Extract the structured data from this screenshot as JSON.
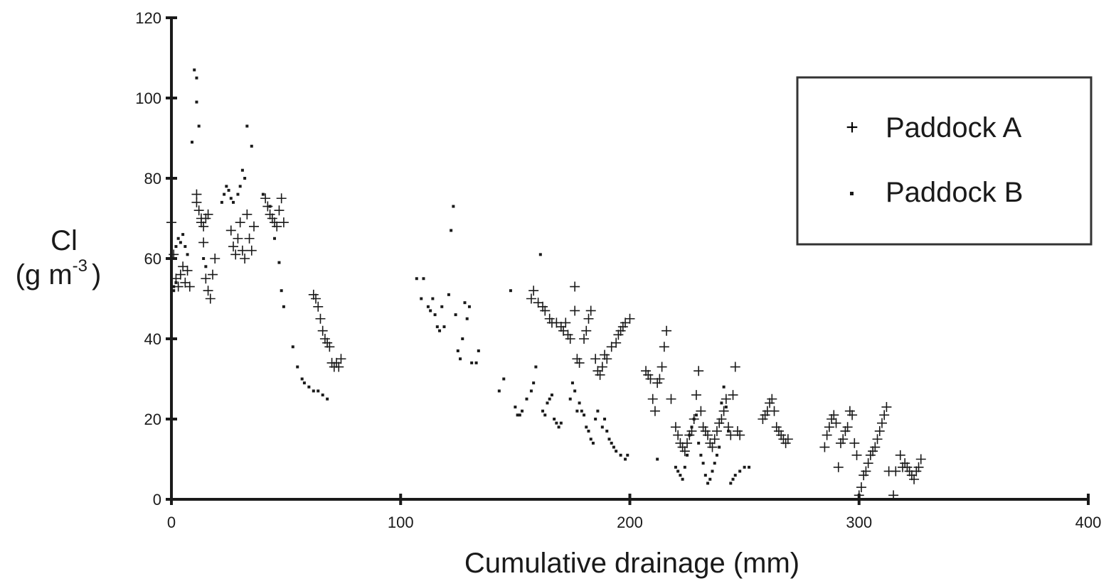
{
  "chart_data": {
    "type": "scatter",
    "xlabel": "Cumulative drainage (mm)",
    "ylabel_line1": "Cl",
    "ylabel_line2": "(g m",
    "ylabel_sup": "-3",
    "ylabel_close": ")",
    "xlim": [
      0,
      400
    ],
    "ylim": [
      0,
      120
    ],
    "xticks": [
      0,
      100,
      200,
      300,
      400
    ],
    "yticks": [
      0,
      20,
      40,
      60,
      80,
      100,
      120
    ],
    "grid": false,
    "legend_position": "top-right",
    "series": [
      {
        "name": "Paddock A",
        "marker": "+",
        "points": [
          [
            0,
            69
          ],
          [
            1,
            61
          ],
          [
            2,
            55
          ],
          [
            3,
            53
          ],
          [
            4,
            56
          ],
          [
            5,
            58
          ],
          [
            6,
            54
          ],
          [
            7,
            57
          ],
          [
            8,
            53
          ],
          [
            11,
            76
          ],
          [
            11,
            74
          ],
          [
            12,
            72
          ],
          [
            13,
            70
          ],
          [
            13,
            69
          ],
          [
            14,
            68
          ],
          [
            15,
            70
          ],
          [
            16,
            71
          ],
          [
            14,
            64
          ],
          [
            15,
            55
          ],
          [
            16,
            52
          ],
          [
            17,
            50
          ],
          [
            18,
            56
          ],
          [
            19,
            60
          ],
          [
            26,
            67
          ],
          [
            27,
            63
          ],
          [
            28,
            61
          ],
          [
            29,
            65
          ],
          [
            30,
            69
          ],
          [
            31,
            62
          ],
          [
            32,
            60
          ],
          [
            33,
            71
          ],
          [
            34,
            65
          ],
          [
            35,
            62
          ],
          [
            36,
            68
          ],
          [
            41,
            75
          ],
          [
            42,
            73
          ],
          [
            43,
            71
          ],
          [
            44,
            70
          ],
          [
            45,
            69
          ],
          [
            46,
            68
          ],
          [
            47,
            72
          ],
          [
            48,
            75
          ],
          [
            49,
            69
          ],
          [
            62,
            51
          ],
          [
            63,
            50
          ],
          [
            64,
            48
          ],
          [
            65,
            45
          ],
          [
            66,
            42
          ],
          [
            67,
            40
          ],
          [
            68,
            39
          ],
          [
            69,
            38
          ],
          [
            70,
            34
          ],
          [
            71,
            33
          ],
          [
            72,
            34
          ],
          [
            73,
            33
          ],
          [
            74,
            35
          ],
          [
            157,
            50
          ],
          [
            158,
            52
          ],
          [
            160,
            49
          ],
          [
            162,
            48
          ],
          [
            163,
            47
          ],
          [
            165,
            45
          ],
          [
            166,
            44
          ],
          [
            168,
            44
          ],
          [
            170,
            43
          ],
          [
            171,
            42
          ],
          [
            172,
            44
          ],
          [
            173,
            41
          ],
          [
            174,
            40
          ],
          [
            176,
            53
          ],
          [
            176,
            47
          ],
          [
            177,
            35
          ],
          [
            178,
            34
          ],
          [
            180,
            40
          ],
          [
            181,
            42
          ],
          [
            182,
            45
          ],
          [
            183,
            47
          ],
          [
            185,
            35
          ],
          [
            186,
            32
          ],
          [
            187,
            31
          ],
          [
            188,
            33
          ],
          [
            189,
            36
          ],
          [
            190,
            35
          ],
          [
            192,
            38
          ],
          [
            194,
            39
          ],
          [
            195,
            41
          ],
          [
            196,
            42
          ],
          [
            197,
            43
          ],
          [
            198,
            44
          ],
          [
            200,
            45
          ],
          [
            207,
            32
          ],
          [
            208,
            31
          ],
          [
            209,
            30
          ],
          [
            210,
            25
          ],
          [
            211,
            22
          ],
          [
            212,
            29
          ],
          [
            213,
            30
          ],
          [
            214,
            33
          ],
          [
            215,
            38
          ],
          [
            216,
            42
          ],
          [
            218,
            25
          ],
          [
            220,
            18
          ],
          [
            221,
            16
          ],
          [
            222,
            14
          ],
          [
            223,
            13
          ],
          [
            224,
            12
          ],
          [
            225,
            14
          ],
          [
            226,
            16
          ],
          [
            227,
            17
          ],
          [
            228,
            20
          ],
          [
            229,
            26
          ],
          [
            230,
            32
          ],
          [
            231,
            22
          ],
          [
            232,
            18
          ],
          [
            233,
            17
          ],
          [
            234,
            16
          ],
          [
            235,
            14
          ],
          [
            236,
            13
          ],
          [
            237,
            15
          ],
          [
            238,
            17
          ],
          [
            239,
            19
          ],
          [
            240,
            20
          ],
          [
            241,
            22
          ],
          [
            242,
            25
          ],
          [
            243,
            18
          ],
          [
            244,
            16
          ],
          [
            245,
            26
          ],
          [
            246,
            33
          ],
          [
            247,
            17
          ],
          [
            248,
            16
          ],
          [
            258,
            20
          ],
          [
            259,
            21
          ],
          [
            260,
            22
          ],
          [
            261,
            24
          ],
          [
            262,
            25
          ],
          [
            263,
            22
          ],
          [
            264,
            18
          ],
          [
            265,
            17
          ],
          [
            266,
            16
          ],
          [
            267,
            15
          ],
          [
            268,
            14
          ],
          [
            269,
            15
          ],
          [
            285,
            13
          ],
          [
            286,
            16
          ],
          [
            287,
            18
          ],
          [
            288,
            20
          ],
          [
            289,
            21
          ],
          [
            290,
            19
          ],
          [
            291,
            8
          ],
          [
            292,
            14
          ],
          [
            293,
            15
          ],
          [
            294,
            17
          ],
          [
            295,
            18
          ],
          [
            296,
            22
          ],
          [
            297,
            21
          ],
          [
            298,
            14
          ],
          [
            299,
            11
          ],
          [
            300,
            1
          ],
          [
            301,
            3
          ],
          [
            302,
            6
          ],
          [
            303,
            7
          ],
          [
            304,
            9
          ],
          [
            305,
            11
          ],
          [
            306,
            12
          ],
          [
            307,
            13
          ],
          [
            308,
            15
          ],
          [
            309,
            17
          ],
          [
            310,
            19
          ],
          [
            311,
            21
          ],
          [
            312,
            23
          ],
          [
            313,
            7
          ],
          [
            315,
            1
          ],
          [
            316,
            7
          ],
          [
            318,
            11
          ],
          [
            319,
            8
          ],
          [
            320,
            9
          ],
          [
            321,
            8
          ],
          [
            322,
            7
          ],
          [
            323,
            6
          ],
          [
            324,
            5
          ],
          [
            325,
            7
          ],
          [
            326,
            8
          ],
          [
            327,
            10
          ]
        ]
      },
      {
        "name": "Paddock B",
        "marker": "·",
        "points": [
          [
            0,
            55
          ],
          [
            1,
            53
          ],
          [
            1,
            52
          ],
          [
            2,
            54
          ],
          [
            2,
            63
          ],
          [
            3,
            65
          ],
          [
            4,
            64
          ],
          [
            5,
            66
          ],
          [
            6,
            63
          ],
          [
            7,
            61
          ],
          [
            9,
            89
          ],
          [
            10,
            107
          ],
          [
            11,
            105
          ],
          [
            11,
            99
          ],
          [
            12,
            93
          ],
          [
            14,
            60
          ],
          [
            15,
            58
          ],
          [
            22,
            74
          ],
          [
            23,
            76
          ],
          [
            24,
            78
          ],
          [
            25,
            77
          ],
          [
            26,
            75
          ],
          [
            27,
            74
          ],
          [
            29,
            76
          ],
          [
            30,
            78
          ],
          [
            31,
            82
          ],
          [
            32,
            80
          ],
          [
            33,
            93
          ],
          [
            35,
            88
          ],
          [
            40,
            76
          ],
          [
            43,
            73
          ],
          [
            45,
            65
          ],
          [
            47,
            59
          ],
          [
            48,
            52
          ],
          [
            49,
            48
          ],
          [
            53,
            38
          ],
          [
            55,
            33
          ],
          [
            57,
            30
          ],
          [
            58,
            29
          ],
          [
            60,
            28
          ],
          [
            62,
            27
          ],
          [
            64,
            27
          ],
          [
            66,
            26
          ],
          [
            68,
            25
          ],
          [
            107,
            55
          ],
          [
            109,
            50
          ],
          [
            110,
            55
          ],
          [
            112,
            48
          ],
          [
            113,
            47
          ],
          [
            114,
            50
          ],
          [
            115,
            46
          ],
          [
            116,
            43
          ],
          [
            117,
            42
          ],
          [
            118,
            48
          ],
          [
            119,
            43
          ],
          [
            121,
            51
          ],
          [
            122,
            67
          ],
          [
            123,
            73
          ],
          [
            124,
            46
          ],
          [
            125,
            37
          ],
          [
            126,
            35
          ],
          [
            127,
            40
          ],
          [
            128,
            49
          ],
          [
            129,
            45
          ],
          [
            130,
            48
          ],
          [
            131,
            34
          ],
          [
            133,
            34
          ],
          [
            134,
            37
          ],
          [
            143,
            27
          ],
          [
            145,
            30
          ],
          [
            148,
            52
          ],
          [
            150,
            23
          ],
          [
            151,
            21
          ],
          [
            152,
            21
          ],
          [
            153,
            22
          ],
          [
            155,
            25
          ],
          [
            157,
            27
          ],
          [
            158,
            29
          ],
          [
            159,
            33
          ],
          [
            161,
            61
          ],
          [
            162,
            22
          ],
          [
            163,
            21
          ],
          [
            164,
            24
          ],
          [
            165,
            25
          ],
          [
            166,
            26
          ],
          [
            167,
            20
          ],
          [
            168,
            19
          ],
          [
            169,
            18
          ],
          [
            170,
            19
          ],
          [
            174,
            25
          ],
          [
            175,
            29
          ],
          [
            176,
            27
          ],
          [
            177,
            22
          ],
          [
            178,
            24
          ],
          [
            179,
            22
          ],
          [
            180,
            21
          ],
          [
            181,
            18
          ],
          [
            182,
            17
          ],
          [
            183,
            15
          ],
          [
            184,
            14
          ],
          [
            185,
            20
          ],
          [
            186,
            22
          ],
          [
            188,
            18
          ],
          [
            189,
            20
          ],
          [
            190,
            17
          ],
          [
            191,
            15
          ],
          [
            192,
            14
          ],
          [
            193,
            13
          ],
          [
            194,
            12
          ],
          [
            196,
            11
          ],
          [
            198,
            10
          ],
          [
            199,
            11
          ],
          [
            212,
            10
          ],
          [
            220,
            8
          ],
          [
            221,
            7
          ],
          [
            222,
            6
          ],
          [
            223,
            5
          ],
          [
            224,
            8
          ],
          [
            225,
            11
          ],
          [
            226,
            16
          ],
          [
            227,
            18
          ],
          [
            228,
            20
          ],
          [
            229,
            21
          ],
          [
            230,
            14
          ],
          [
            231,
            11
          ],
          [
            232,
            9
          ],
          [
            233,
            6
          ],
          [
            234,
            4
          ],
          [
            235,
            5
          ],
          [
            236,
            7
          ],
          [
            237,
            9
          ],
          [
            238,
            11
          ],
          [
            239,
            13
          ],
          [
            240,
            24
          ],
          [
            241,
            28
          ],
          [
            242,
            23
          ],
          [
            243,
            17
          ],
          [
            244,
            4
          ],
          [
            245,
            5
          ],
          [
            246,
            6
          ],
          [
            248,
            7
          ],
          [
            250,
            8
          ],
          [
            252,
            8
          ]
        ]
      }
    ]
  }
}
